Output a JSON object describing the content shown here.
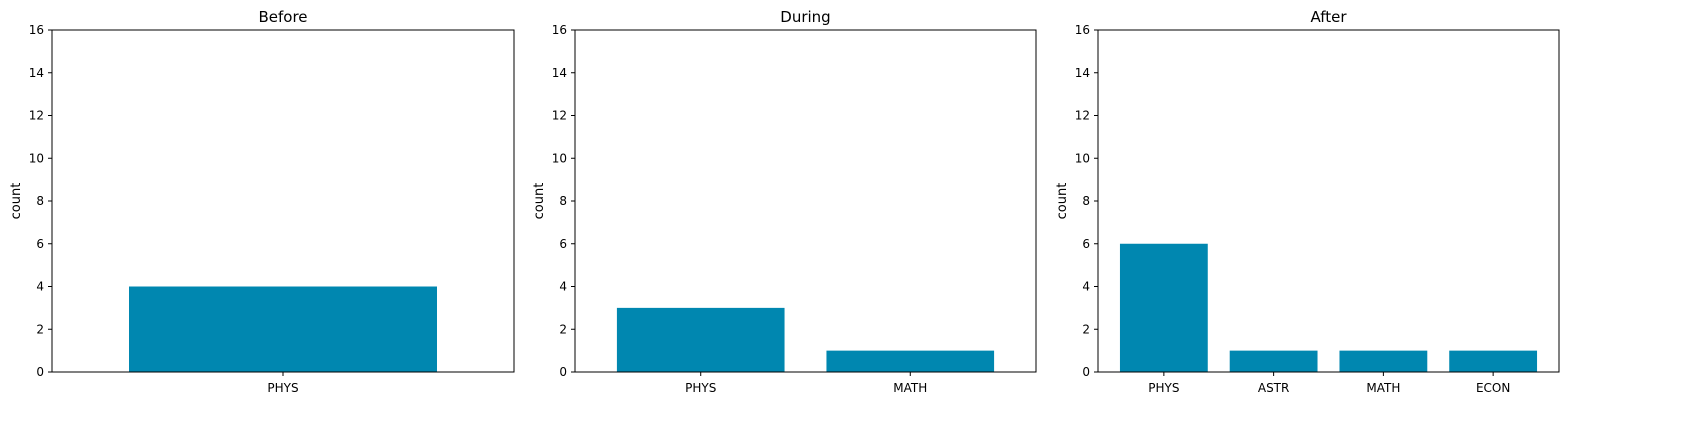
{
  "chart_data": [
    {
      "type": "bar",
      "title": "Before",
      "ylabel": "count",
      "xlabel": "",
      "ylim": [
        0,
        16
      ],
      "yticks": [
        0,
        2,
        4,
        6,
        8,
        10,
        12,
        14,
        16
      ],
      "grid": false,
      "color": "#0087b0",
      "categories": [
        "PHYS"
      ],
      "values": [
        4
      ]
    },
    {
      "type": "bar",
      "title": "During",
      "ylabel": "count",
      "xlabel": "",
      "ylim": [
        0,
        16
      ],
      "yticks": [
        0,
        2,
        4,
        6,
        8,
        10,
        12,
        14,
        16
      ],
      "grid": false,
      "color": "#0087b0",
      "categories": [
        "PHYS",
        "MATH"
      ],
      "values": [
        3,
        1
      ]
    },
    {
      "type": "bar",
      "title": "After",
      "ylabel": "count",
      "xlabel": "",
      "ylim": [
        0,
        16
      ],
      "yticks": [
        0,
        2,
        4,
        6,
        8,
        10,
        12,
        14,
        16
      ],
      "grid": false,
      "color": "#0087b0",
      "categories": [
        "PHYS",
        "ASTR",
        "MATH",
        "ECON"
      ],
      "values": [
        6,
        1,
        1,
        1
      ]
    }
  ]
}
